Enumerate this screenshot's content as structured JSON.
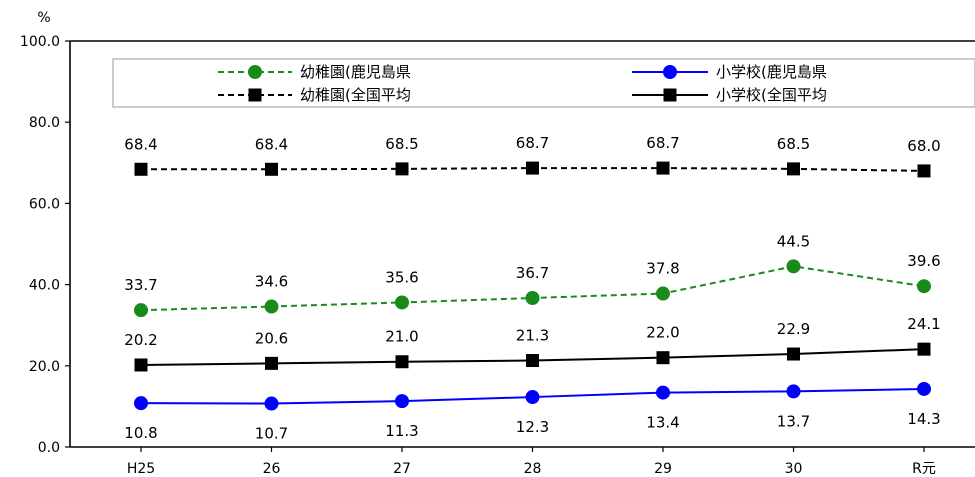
{
  "chart_data": {
    "type": "line",
    "ylabel": "%",
    "ylim": [
      0,
      100
    ],
    "yticks": [
      "0.0",
      "20.0",
      "40.0",
      "60.0",
      "80.0",
      "100.0"
    ],
    "categories": [
      "H25",
      "26",
      "27",
      "28",
      "29",
      "30",
      "R元"
    ],
    "grid": false,
    "legend_position": "top",
    "series": [
      {
        "name": "幼稚園(鹿児島県",
        "values": [
          33.7,
          34.6,
          35.6,
          36.7,
          37.8,
          44.5,
          39.6
        ],
        "labels": [
          "33.7",
          "34.6",
          "35.6",
          "36.7",
          "37.8",
          "44.5",
          "39.6"
        ],
        "color": "#1a8a1a",
        "dashed": true,
        "marker": "circle",
        "label_position": "above"
      },
      {
        "name": "小学校(鹿児島県",
        "values": [
          10.8,
          10.7,
          11.3,
          12.3,
          13.4,
          13.7,
          14.3
        ],
        "labels": [
          "10.8",
          "10.7",
          "11.3",
          "12.3",
          "13.4",
          "13.7",
          "14.3"
        ],
        "color": "#0000ff",
        "dashed": false,
        "marker": "circle",
        "label_position": "below"
      },
      {
        "name": "幼稚園(全国平均",
        "values": [
          68.4,
          68.4,
          68.5,
          68.7,
          68.7,
          68.5,
          68.0
        ],
        "labels": [
          "68.4",
          "68.4",
          "68.5",
          "68.7",
          "68.7",
          "68.5",
          "68.0"
        ],
        "color": "#000000",
        "dashed": true,
        "marker": "square",
        "label_position": "above"
      },
      {
        "name": "小学校(全国平均",
        "values": [
          20.2,
          20.6,
          21.0,
          21.3,
          22.0,
          22.9,
          24.1
        ],
        "labels": [
          "20.2",
          "20.6",
          "21.0",
          "21.3",
          "22.0",
          "22.9",
          "24.1"
        ],
        "color": "#000000",
        "dashed": false,
        "marker": "square",
        "label_position": "above"
      }
    ]
  }
}
